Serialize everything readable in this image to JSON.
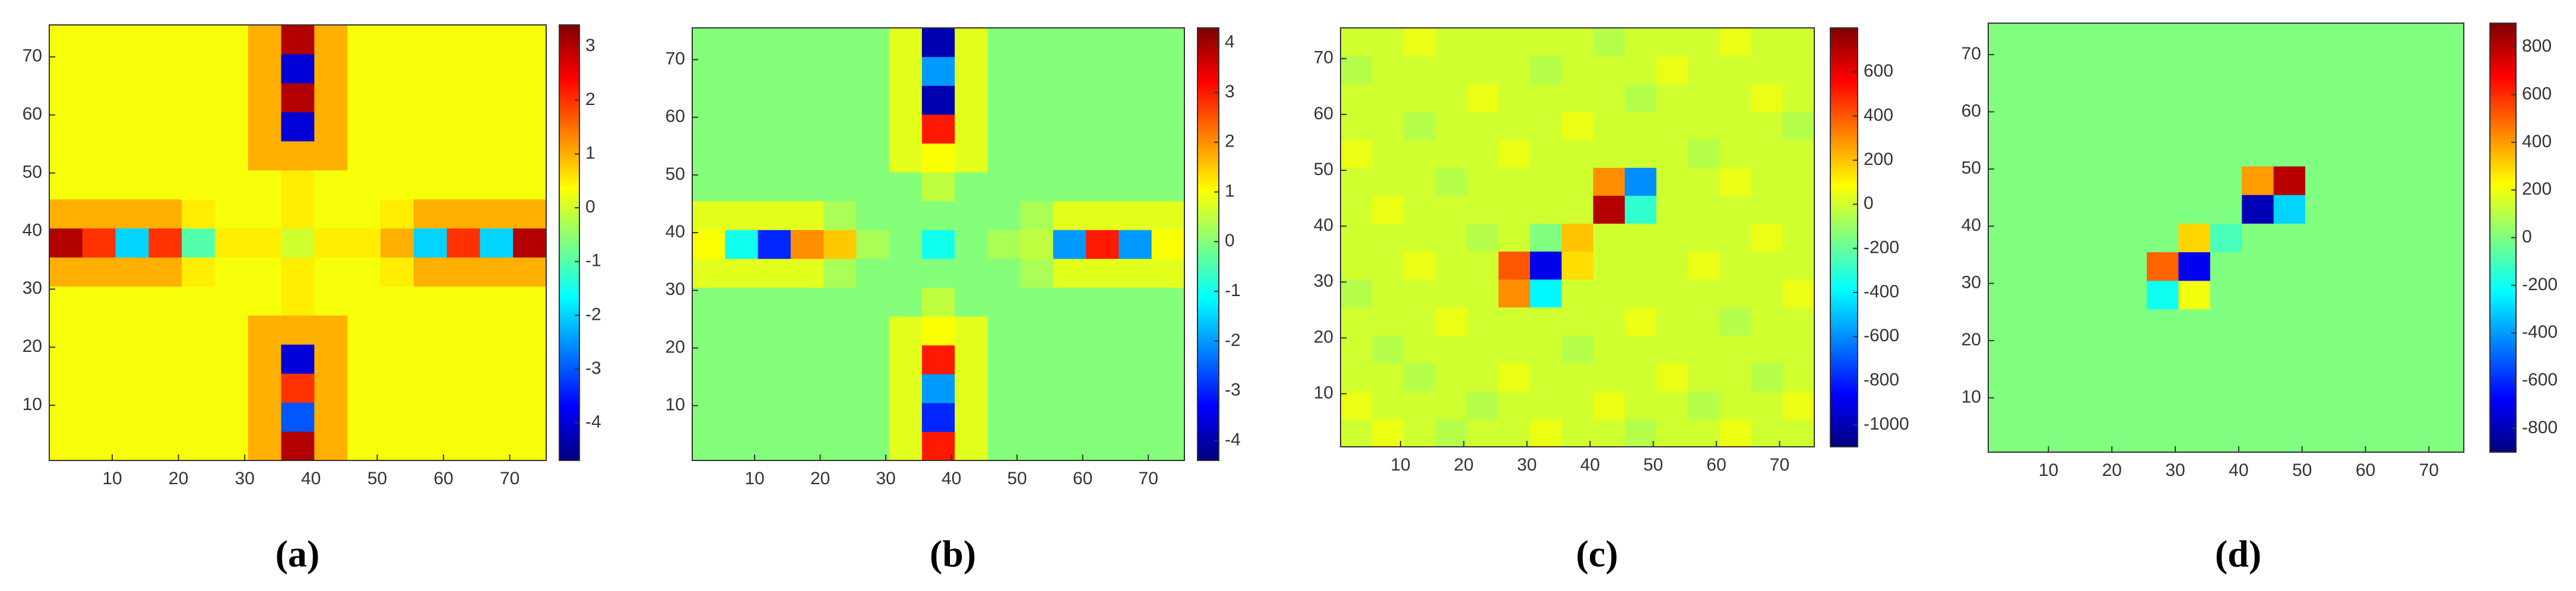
{
  "chart_data": [
    {
      "type": "heatmap",
      "label": "(a)",
      "colormap": "jet",
      "x": [
        3,
        8,
        13,
        18,
        23,
        28,
        33,
        38,
        43,
        48,
        53,
        58,
        63,
        68,
        73
      ],
      "y": [
        3,
        8,
        13,
        18,
        23,
        28,
        33,
        38,
        43,
        48,
        53,
        58,
        63,
        68,
        73
      ],
      "xlim": [
        1,
        75
      ],
      "ylim": [
        1,
        75
      ],
      "xticks": [
        10,
        20,
        30,
        40,
        50,
        60,
        70
      ],
      "yticks": [
        10,
        20,
        30,
        40,
        50,
        60,
        70
      ],
      "clim": [
        -4.7,
        3.4
      ],
      "cticks": [
        -4,
        -3,
        -2,
        -1,
        0,
        1,
        2,
        3
      ],
      "z": [
        [
          0.3,
          0.3,
          0.3,
          0.3,
          0.3,
          0.3,
          1,
          3,
          1,
          0.3,
          0.3,
          0.3,
          0.3,
          0.3,
          0.3
        ],
        [
          0.3,
          0.3,
          0.3,
          0.3,
          0.3,
          0.3,
          1,
          -3,
          1,
          0.3,
          0.3,
          0.3,
          0.3,
          0.3,
          0.3
        ],
        [
          0.3,
          0.3,
          0.3,
          0.3,
          0.3,
          0.3,
          1,
          2,
          1,
          0.3,
          0.3,
          0.3,
          0.3,
          0.3,
          0.3
        ],
        [
          0.3,
          0.3,
          0.3,
          0.3,
          0.3,
          0.3,
          1,
          -4,
          1,
          0.3,
          0.3,
          0.3,
          0.3,
          0.3,
          0.3
        ],
        [
          0.3,
          0.3,
          0.3,
          0.3,
          0.3,
          0.3,
          1,
          1,
          1,
          0.3,
          0.3,
          0.3,
          0.3,
          0.3,
          0.3
        ],
        [
          0.3,
          0.3,
          0.3,
          0.3,
          0.3,
          0.3,
          0.3,
          0.5,
          0.3,
          0.3,
          0.3,
          0.3,
          0.3,
          0.3,
          0.3
        ],
        [
          1,
          1,
          1,
          1,
          0.5,
          0.3,
          0.3,
          0.5,
          0.3,
          0.3,
          0.5,
          1,
          1,
          1,
          1
        ],
        [
          3,
          2,
          -2,
          2,
          -1,
          0.5,
          0.5,
          0,
          0.5,
          0.5,
          1,
          -2,
          2,
          -2,
          3
        ],
        [
          1,
          1,
          1,
          1,
          0.5,
          0.3,
          0.3,
          0.5,
          0.3,
          0.3,
          0.5,
          1,
          1,
          1,
          1
        ],
        [
          0.3,
          0.3,
          0.3,
          0.3,
          0.3,
          0.3,
          0.3,
          0.5,
          0.3,
          0.3,
          0.3,
          0.3,
          0.3,
          0.3,
          0.3
        ],
        [
          0.3,
          0.3,
          0.3,
          0.3,
          0.3,
          0.3,
          1,
          1,
          1,
          0.3,
          0.3,
          0.3,
          0.3,
          0.3,
          0.3
        ],
        [
          0.3,
          0.3,
          0.3,
          0.3,
          0.3,
          0.3,
          1,
          -4,
          1,
          0.3,
          0.3,
          0.3,
          0.3,
          0.3,
          0.3
        ],
        [
          0.3,
          0.3,
          0.3,
          0.3,
          0.3,
          0.3,
          1,
          3,
          1,
          0.3,
          0.3,
          0.3,
          0.3,
          0.3,
          0.3
        ],
        [
          0.3,
          0.3,
          0.3,
          0.3,
          0.3,
          0.3,
          1,
          -4,
          1,
          0.3,
          0.3,
          0.3,
          0.3,
          0.3,
          0.3
        ],
        [
          0.3,
          0.3,
          0.3,
          0.3,
          0.3,
          0.3,
          1,
          3,
          1,
          0.3,
          0.3,
          0.3,
          0.3,
          0.3,
          0.3
        ]
      ]
    },
    {
      "type": "heatmap",
      "label": "(b)",
      "colormap": "jet",
      "x": [
        3,
        8,
        13,
        18,
        23,
        28,
        33,
        38,
        43,
        48,
        53,
        58,
        63,
        68,
        73
      ],
      "y": [
        3,
        8,
        13,
        18,
        23,
        28,
        33,
        38,
        43,
        48,
        53,
        58,
        63,
        68,
        73
      ],
      "xlim": [
        1,
        75
      ],
      "ylim": [
        1,
        75
      ],
      "xticks": [
        10,
        20,
        30,
        40,
        50,
        60,
        70
      ],
      "yticks": [
        10,
        20,
        30,
        40,
        50,
        60,
        70
      ],
      "clim": [
        -4.4,
        4.3
      ],
      "cticks": [
        -4,
        -3,
        -2,
        -1,
        0,
        1,
        2,
        3,
        4
      ],
      "z": [
        [
          0,
          0,
          0,
          0,
          0,
          0,
          0.8,
          3,
          0.8,
          0,
          0,
          0,
          0,
          0,
          0
        ],
        [
          0,
          0,
          0,
          0,
          0,
          0,
          0.8,
          -3,
          0.8,
          0,
          0,
          0,
          0,
          0,
          0
        ],
        [
          0,
          0,
          0,
          0,
          0,
          0,
          0.8,
          -2,
          0.8,
          0,
          0,
          0,
          0,
          0,
          0
        ],
        [
          0,
          0,
          0,
          0,
          0,
          0,
          0.8,
          3,
          0.8,
          0,
          0,
          0,
          0,
          0,
          0
        ],
        [
          0,
          0,
          0,
          0,
          0,
          0,
          0.8,
          1,
          0.8,
          0,
          0,
          0,
          0,
          0,
          0
        ],
        [
          0,
          0,
          0,
          0,
          0,
          0,
          0,
          0.5,
          0,
          0,
          0,
          0,
          0,
          0,
          0
        ],
        [
          0.8,
          0.8,
          0.8,
          0.8,
          0.3,
          0,
          0,
          0,
          0,
          0,
          0.3,
          0.8,
          0.8,
          0.8,
          0.8
        ],
        [
          1,
          -1,
          -3,
          2,
          1.5,
          0.3,
          0,
          -1,
          0,
          0.3,
          0.5,
          -2,
          3,
          -2,
          1
        ],
        [
          0.8,
          0.8,
          0.8,
          0.8,
          0.3,
          0,
          0,
          0,
          0,
          0,
          0.3,
          0.8,
          0.8,
          0.8,
          0.8
        ],
        [
          0,
          0,
          0,
          0,
          0,
          0,
          0,
          0.5,
          0,
          0,
          0,
          0,
          0,
          0,
          0
        ],
        [
          0,
          0,
          0,
          0,
          0,
          0,
          0.8,
          1,
          0.8,
          0,
          0,
          0,
          0,
          0,
          0
        ],
        [
          0,
          0,
          0,
          0,
          0,
          0,
          0.8,
          3,
          0.8,
          0,
          0,
          0,
          0,
          0,
          0
        ],
        [
          0,
          0,
          0,
          0,
          0,
          0,
          0.8,
          -4,
          0.8,
          0,
          0,
          0,
          0,
          0,
          0
        ],
        [
          0,
          0,
          0,
          0,
          0,
          0,
          0.8,
          -2,
          0.8,
          0,
          0,
          0,
          0,
          0,
          0
        ],
        [
          0,
          0,
          0,
          0,
          0,
          0,
          0.8,
          -4,
          0.8,
          0,
          0,
          0,
          0,
          0,
          0
        ]
      ]
    },
    {
      "type": "heatmap",
      "label": "(c)",
      "colormap": "jet",
      "x": [
        3,
        8,
        13,
        18,
        23,
        28,
        33,
        38,
        43,
        48,
        53,
        58,
        63,
        68,
        73
      ],
      "y": [
        3,
        8,
        13,
        18,
        23,
        28,
        33,
        38,
        43,
        48,
        53,
        58,
        63,
        68,
        73
      ],
      "xlim": [
        1,
        75
      ],
      "ylim": [
        1,
        75
      ],
      "xticks": [
        10,
        20,
        30,
        40,
        50,
        60,
        70
      ],
      "yticks": [
        10,
        20,
        30,
        40,
        50,
        60,
        70
      ],
      "clim": [
        -1100,
        800
      ],
      "cticks": [
        -1000,
        -800,
        -600,
        -400,
        -200,
        0,
        200,
        400,
        600
      ],
      "z": [
        [
          0,
          50,
          0,
          -50,
          0,
          0,
          50,
          0,
          0,
          -50,
          0,
          0,
          50,
          0,
          0
        ],
        [
          50,
          0,
          0,
          0,
          -50,
          0,
          0,
          0,
          50,
          0,
          0,
          -50,
          0,
          0,
          50
        ],
        [
          0,
          0,
          -50,
          0,
          0,
          50,
          0,
          0,
          0,
          0,
          50,
          0,
          0,
          -50,
          0
        ],
        [
          0,
          -50,
          0,
          0,
          0,
          0,
          0,
          -50,
          0,
          0,
          0,
          0,
          0,
          0,
          0
        ],
        [
          0,
          0,
          0,
          50,
          0,
          0,
          0,
          0,
          0,
          50,
          0,
          0,
          -50,
          0,
          0
        ],
        [
          -50,
          0,
          0,
          0,
          0,
          300,
          -400,
          0,
          0,
          0,
          0,
          0,
          0,
          0,
          50
        ],
        [
          0,
          0,
          50,
          0,
          0,
          400,
          -900,
          150,
          0,
          0,
          0,
          50,
          0,
          0,
          0
        ],
        [
          0,
          0,
          0,
          0,
          -50,
          0,
          -150,
          200,
          0,
          0,
          0,
          0,
          0,
          50,
          0
        ],
        [
          0,
          50,
          0,
          0,
          0,
          0,
          0,
          0,
          700,
          -300,
          0,
          0,
          0,
          0,
          0
        ],
        [
          0,
          0,
          0,
          -50,
          0,
          0,
          0,
          0,
          300,
          -600,
          0,
          0,
          50,
          0,
          0
        ],
        [
          50,
          0,
          0,
          0,
          0,
          50,
          0,
          0,
          0,
          0,
          0,
          -50,
          0,
          0,
          0
        ],
        [
          0,
          0,
          -50,
          0,
          0,
          0,
          0,
          50,
          0,
          0,
          0,
          0,
          0,
          0,
          -50
        ],
        [
          0,
          0,
          0,
          0,
          50,
          0,
          0,
          0,
          0,
          -50,
          0,
          0,
          0,
          50,
          0
        ],
        [
          -50,
          0,
          0,
          0,
          0,
          0,
          -50,
          0,
          0,
          0,
          50,
          0,
          0,
          0,
          0
        ],
        [
          0,
          0,
          50,
          0,
          0,
          0,
          0,
          0,
          -50,
          0,
          0,
          0,
          50,
          0,
          0
        ]
      ]
    },
    {
      "type": "heatmap",
      "label": "(d)",
      "colormap": "jet",
      "x": [
        3,
        8,
        13,
        18,
        23,
        28,
        33,
        38,
        43,
        48,
        53,
        58,
        63,
        68,
        73
      ],
      "y": [
        3,
        8,
        13,
        18,
        23,
        28,
        33,
        38,
        43,
        48,
        53,
        58,
        63,
        68,
        73
      ],
      "xlim": [
        1,
        75
      ],
      "ylim": [
        1,
        75
      ],
      "xticks": [
        10,
        20,
        30,
        40,
        50,
        60,
        70
      ],
      "yticks": [
        10,
        20,
        30,
        40,
        50,
        60,
        70
      ],
      "clim": [
        -900,
        900
      ],
      "cticks": [
        -800,
        -600,
        -400,
        -200,
        0,
        200,
        400,
        600,
        800
      ],
      "z": [
        [
          0,
          0,
          0,
          0,
          0,
          0,
          0,
          0,
          0,
          0,
          0,
          0,
          0,
          0,
          0
        ],
        [
          0,
          0,
          0,
          0,
          0,
          0,
          0,
          0,
          0,
          0,
          0,
          0,
          0,
          0,
          0
        ],
        [
          0,
          0,
          0,
          0,
          0,
          0,
          0,
          0,
          0,
          0,
          0,
          0,
          0,
          0,
          0
        ],
        [
          0,
          0,
          0,
          0,
          0,
          0,
          0,
          0,
          0,
          0,
          0,
          0,
          0,
          0,
          0
        ],
        [
          0,
          0,
          0,
          0,
          0,
          0,
          0,
          0,
          0,
          0,
          0,
          0,
          0,
          0,
          0
        ],
        [
          0,
          0,
          0,
          0,
          0,
          -200,
          200,
          0,
          0,
          0,
          0,
          0,
          0,
          0,
          0
        ],
        [
          0,
          0,
          0,
          0,
          0,
          500,
          -700,
          0,
          0,
          0,
          0,
          0,
          0,
          0,
          0
        ],
        [
          0,
          0,
          0,
          0,
          0,
          0,
          300,
          -100,
          0,
          0,
          0,
          0,
          0,
          0,
          0
        ],
        [
          0,
          0,
          0,
          0,
          0,
          0,
          0,
          0,
          -800,
          -300,
          0,
          0,
          0,
          0,
          0
        ],
        [
          0,
          0,
          0,
          0,
          0,
          0,
          0,
          0,
          400,
          800,
          0,
          0,
          0,
          0,
          0
        ],
        [
          0,
          0,
          0,
          0,
          0,
          0,
          0,
          0,
          0,
          0,
          0,
          0,
          0,
          0,
          0
        ],
        [
          0,
          0,
          0,
          0,
          0,
          0,
          0,
          0,
          0,
          0,
          0,
          0,
          0,
          0,
          0
        ],
        [
          0,
          0,
          0,
          0,
          0,
          0,
          0,
          0,
          0,
          0,
          0,
          0,
          0,
          0,
          0
        ],
        [
          0,
          0,
          0,
          0,
          0,
          0,
          0,
          0,
          0,
          0,
          0,
          0,
          0,
          0,
          0
        ],
        [
          0,
          0,
          0,
          0,
          0,
          0,
          0,
          0,
          0,
          0,
          0,
          0,
          0,
          0,
          0
        ]
      ]
    }
  ]
}
